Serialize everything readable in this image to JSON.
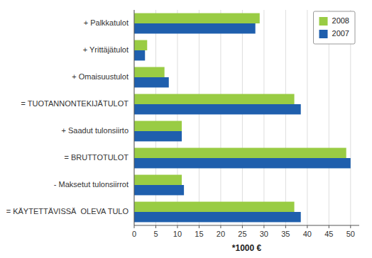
{
  "chart_data": {
    "type": "bar",
    "orientation": "horizontal",
    "categories": [
      "= KÄYTETTÄVISSÄ  OLEVA TULO",
      "- Maksetut tulonsiirrot",
      "= BRUTTOTULOT",
      "+ Saadut tulonsiirto",
      "= TUOTANNONTEKIJÄTULOT",
      "+ Omaisuustulot",
      "+ Yrittäjätulot",
      "+ Palkkatulot"
    ],
    "series": [
      {
        "name": "2008",
        "color": "#99cc44",
        "values": [
          37,
          11,
          49,
          11,
          37,
          7,
          3,
          29
        ]
      },
      {
        "name": "2007",
        "color": "#1f5fad",
        "values": [
          38.5,
          11.5,
          50,
          11,
          38.5,
          8,
          2.5,
          28
        ]
      }
    ],
    "x_label": "*1000 €",
    "xlim": [
      0,
      52
    ],
    "xticks": [
      0,
      5,
      10,
      15,
      20,
      25,
      30,
      35,
      40,
      45,
      50
    ],
    "grid": true,
    "legend": "upper right"
  }
}
